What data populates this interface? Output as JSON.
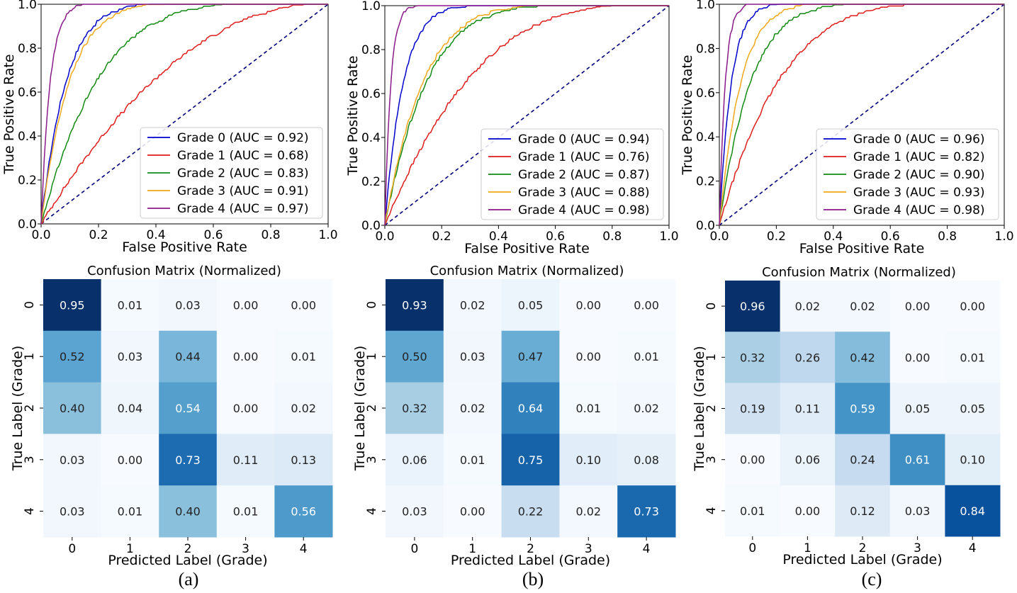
{
  "figure": {
    "roc_common": {
      "xlabel": "False Positive Rate",
      "ylabel": "True Positive Rate",
      "ticks": [
        "0.0",
        "0.2",
        "0.4",
        "0.6",
        "0.8",
        "1.0"
      ]
    },
    "cm_common": {
      "title": "Confusion Matrix (Normalized)",
      "xlabel": "Predicted Label (Grade)",
      "ylabel": "True Label (Grade)",
      "labels": [
        "0",
        "1",
        "2",
        "3",
        "4"
      ]
    },
    "series_colors": [
      "#0000cc",
      "#e01c1c",
      "#128a12",
      "#f0a818",
      "#8a1a8a"
    ],
    "diagonal_color": "#00007a",
    "captions": [
      "(a)",
      "(b)",
      "(c)"
    ]
  },
  "chart_data": [
    {
      "type": "line",
      "panel": "(a)",
      "title": "",
      "xlabel": "False Positive Rate",
      "ylabel": "True Positive Rate",
      "xlim": [
        0,
        1
      ],
      "ylim": [
        0,
        1
      ],
      "legend_position": "lower-right",
      "series": [
        {
          "name": "Grade 0",
          "auc": 0.92,
          "legend": "Grade 0 (AUC = 0.92)"
        },
        {
          "name": "Grade 1",
          "auc": 0.68,
          "legend": "Grade 1 (AUC = 0.68)"
        },
        {
          "name": "Grade 2",
          "auc": 0.83,
          "legend": "Grade 2 (AUC = 0.83)"
        },
        {
          "name": "Grade 3",
          "auc": 0.91,
          "legend": "Grade 3 (AUC = 0.91)"
        },
        {
          "name": "Grade 4",
          "auc": 0.97,
          "legend": "Grade 4 (AUC = 0.97)"
        }
      ]
    },
    {
      "type": "line",
      "panel": "(b)",
      "title": "",
      "xlabel": "False Positive Rate",
      "ylabel": "True Positive Rate",
      "xlim": [
        0,
        1
      ],
      "ylim": [
        0,
        1
      ],
      "legend_position": "lower-right",
      "series": [
        {
          "name": "Grade 0",
          "auc": 0.94,
          "legend": "Grade 0 (AUC = 0.94)"
        },
        {
          "name": "Grade 1",
          "auc": 0.76,
          "legend": "Grade 1 (AUC = 0.76)"
        },
        {
          "name": "Grade 2",
          "auc": 0.87,
          "legend": "Grade 2 (AUC = 0.87)"
        },
        {
          "name": "Grade 3",
          "auc": 0.88,
          "legend": "Grade 3 (AUC = 0.88)"
        },
        {
          "name": "Grade 4",
          "auc": 0.98,
          "legend": "Grade 4 (AUC = 0.98)"
        }
      ]
    },
    {
      "type": "line",
      "panel": "(c)",
      "title": "",
      "xlabel": "False Positive Rate",
      "ylabel": "True Positive Rate",
      "xlim": [
        0,
        1
      ],
      "ylim": [
        0,
        1
      ],
      "legend_position": "lower-right",
      "series": [
        {
          "name": "Grade 0",
          "auc": 0.96,
          "legend": "Grade 0 (AUC = 0.96)"
        },
        {
          "name": "Grade 1",
          "auc": 0.82,
          "legend": "Grade 1 (AUC = 0.82)"
        },
        {
          "name": "Grade 2",
          "auc": 0.9,
          "legend": "Grade 2 (AUC = 0.90)"
        },
        {
          "name": "Grade 3",
          "auc": 0.93,
          "legend": "Grade 3 (AUC = 0.93)"
        },
        {
          "name": "Grade 4",
          "auc": 0.98,
          "legend": "Grade 4 (AUC = 0.98)"
        }
      ]
    },
    {
      "type": "heatmap",
      "panel": "(a)",
      "title": "Confusion Matrix (Normalized)",
      "xlabel": "Predicted Label (Grade)",
      "ylabel": "True Label (Grade)",
      "labels": [
        "0",
        "1",
        "2",
        "3",
        "4"
      ],
      "matrix": [
        [
          0.95,
          0.01,
          0.03,
          0.0,
          0.0
        ],
        [
          0.52,
          0.03,
          0.44,
          0.0,
          0.01
        ],
        [
          0.4,
          0.04,
          0.54,
          0.0,
          0.02
        ],
        [
          0.03,
          0.0,
          0.73,
          0.11,
          0.13
        ],
        [
          0.03,
          0.01,
          0.4,
          0.01,
          0.56
        ]
      ]
    },
    {
      "type": "heatmap",
      "panel": "(b)",
      "title": "Confusion Matrix (Normalized)",
      "xlabel": "Predicted Label (Grade)",
      "ylabel": "True Label (Grade)",
      "labels": [
        "0",
        "1",
        "2",
        "3",
        "4"
      ],
      "matrix": [
        [
          0.93,
          0.02,
          0.05,
          0.0,
          0.0
        ],
        [
          0.5,
          0.03,
          0.47,
          0.0,
          0.01
        ],
        [
          0.32,
          0.02,
          0.64,
          0.01,
          0.02
        ],
        [
          0.06,
          0.01,
          0.75,
          0.1,
          0.08
        ],
        [
          0.03,
          0.0,
          0.22,
          0.02,
          0.73
        ]
      ]
    },
    {
      "type": "heatmap",
      "panel": "(c)",
      "title": "Confusion Matrix (Normalized)",
      "xlabel": "Predicted Label (Grade)",
      "ylabel": "True Label (Grade)",
      "labels": [
        "0",
        "1",
        "2",
        "3",
        "4"
      ],
      "matrix": [
        [
          0.96,
          0.02,
          0.02,
          0.0,
          0.0
        ],
        [
          0.32,
          0.26,
          0.42,
          0.0,
          0.01
        ],
        [
          0.19,
          0.11,
          0.59,
          0.05,
          0.05
        ],
        [
          0.0,
          0.06,
          0.24,
          0.61,
          0.1
        ],
        [
          0.01,
          0.0,
          0.12,
          0.03,
          0.84
        ]
      ]
    }
  ]
}
